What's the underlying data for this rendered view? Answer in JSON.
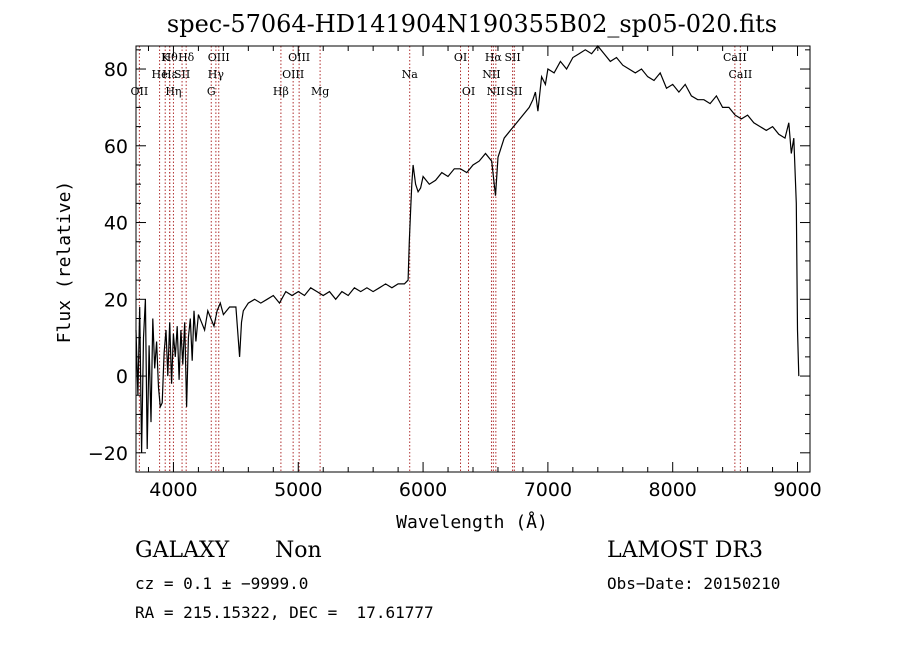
{
  "chart_data": {
    "type": "line",
    "title": "spec-57064-HD141904N190355B02_sp05-020.fits",
    "xlabel": "Wavelength (Å)",
    "ylabel": "Flux (relative)",
    "xlim": [
      3700,
      9100
    ],
    "ylim": [
      -25,
      86
    ],
    "xticks": [
      4000,
      5000,
      6000,
      7000,
      8000,
      9000
    ],
    "yticks": [
      -20,
      0,
      20,
      40,
      60,
      80
    ],
    "xtick_labels": [
      "4000",
      "5000",
      "6000",
      "7000",
      "8000",
      "9000"
    ],
    "ytick_labels": [
      "−20",
      "0",
      "20",
      "40",
      "60",
      "80"
    ],
    "series": [
      {
        "name": "flux",
        "x": [
          3700,
          3715,
          3730,
          3745,
          3760,
          3775,
          3790,
          3805,
          3820,
          3835,
          3850,
          3865,
          3880,
          3895,
          3910,
          3925,
          3940,
          3955,
          3970,
          3985,
          4000,
          4015,
          4030,
          4045,
          4060,
          4075,
          4090,
          4105,
          4120,
          4135,
          4150,
          4165,
          4180,
          4200,
          4225,
          4250,
          4275,
          4300,
          4325,
          4350,
          4375,
          4400,
          4450,
          4500,
          4530,
          4545,
          4560,
          4600,
          4650,
          4700,
          4750,
          4800,
          4850,
          4900,
          4950,
          5000,
          5050,
          5100,
          5150,
          5200,
          5250,
          5300,
          5350,
          5400,
          5450,
          5500,
          5550,
          5600,
          5650,
          5700,
          5750,
          5800,
          5850,
          5880,
          5890,
          5900,
          5910,
          5920,
          5940,
          5960,
          5980,
          6000,
          6050,
          6100,
          6150,
          6200,
          6250,
          6300,
          6350,
          6400,
          6450,
          6500,
          6550,
          6580,
          6600,
          6620,
          6650,
          6700,
          6750,
          6800,
          6850,
          6880,
          6900,
          6920,
          6950,
          6980,
          7000,
          7050,
          7100,
          7150,
          7200,
          7250,
          7300,
          7350,
          7400,
          7450,
          7500,
          7550,
          7600,
          7650,
          7700,
          7750,
          7800,
          7850,
          7900,
          7950,
          8000,
          8050,
          8100,
          8150,
          8200,
          8250,
          8300,
          8350,
          8400,
          8450,
          8500,
          8550,
          8600,
          8650,
          8700,
          8750,
          8800,
          8850,
          8900,
          8930,
          8950,
          8970,
          8990,
          9000,
          9010
        ],
        "y": [
          12,
          -5,
          18,
          -20,
          10,
          20,
          -19,
          8,
          -12,
          15,
          2,
          9,
          -3,
          -8,
          -7,
          6,
          12,
          0,
          14,
          -2,
          11,
          5,
          13,
          -1,
          12,
          3,
          14,
          -8,
          10,
          15,
          4,
          17,
          9,
          16,
          14,
          12,
          17,
          15,
          13,
          17,
          19,
          16,
          18,
          18,
          5,
          14,
          17,
          19,
          20,
          19,
          20,
          21,
          19,
          22,
          21,
          22,
          21,
          23,
          22,
          21,
          22,
          20,
          22,
          21,
          23,
          22,
          23,
          22,
          23,
          24,
          23,
          24,
          24,
          25,
          35,
          43,
          50,
          55,
          50,
          48,
          49,
          52,
          50,
          51,
          53,
          52,
          54,
          54,
          53,
          55,
          56,
          58,
          56,
          47,
          57,
          59,
          62,
          64,
          66,
          68,
          70,
          72,
          74,
          69,
          78,
          76,
          80,
          79,
          82,
          80,
          83,
          84,
          85,
          84,
          86,
          84,
          82,
          83,
          81,
          80,
          79,
          80,
          78,
          77,
          79,
          75,
          76,
          74,
          76,
          73,
          72,
          72,
          71,
          73,
          70,
          70,
          68,
          67,
          68,
          66,
          65,
          64,
          65,
          63,
          62,
          66,
          58,
          62,
          45,
          12,
          0
        ]
      }
    ],
    "lines": [
      {
        "wavelength": 3727,
        "label": "OII",
        "row": 2
      },
      {
        "wavelength": 3889,
        "label": "He",
        "row": 1
      },
      {
        "wavelength": 3934,
        "label": "K",
        "row": 0
      },
      {
        "wavelength": 3970,
        "label": "Hε",
        "row": 1
      },
      {
        "wavelength": 3970,
        "label": "Hθ",
        "row": 0
      },
      {
        "wavelength": 4000,
        "label": "Hη",
        "row": 2
      },
      {
        "wavelength": 4069,
        "label": "SII",
        "row": 1
      },
      {
        "wavelength": 4102,
        "label": "Hδ",
        "row": 0
      },
      {
        "wavelength": 4303,
        "label": "G",
        "row": 2
      },
      {
        "wavelength": 4340,
        "label": "Hγ",
        "row": 1
      },
      {
        "wavelength": 4363,
        "label": "OIII",
        "row": 0
      },
      {
        "wavelength": 4861,
        "label": "Hβ",
        "row": 2
      },
      {
        "wavelength": 4959,
        "label": "OIII",
        "row": 1
      },
      {
        "wavelength": 5007,
        "label": "OIII",
        "row": 0
      },
      {
        "wavelength": 5175,
        "label": "Mg",
        "row": 2
      },
      {
        "wavelength": 5893,
        "label": "Na",
        "row": 1
      },
      {
        "wavelength": 6300,
        "label": "OI",
        "row": 0
      },
      {
        "wavelength": 6364,
        "label": "OI",
        "row": 2
      },
      {
        "wavelength": 6548,
        "label": "NII",
        "row": 1
      },
      {
        "wavelength": 6563,
        "label": "Hα",
        "row": 0
      },
      {
        "wavelength": 6583,
        "label": "NII",
        "row": 2
      },
      {
        "wavelength": 6717,
        "label": "SII",
        "row": 0
      },
      {
        "wavelength": 6731,
        "label": "SII",
        "row": 2
      },
      {
        "wavelength": 8498,
        "label": "CaII",
        "row": 0
      },
      {
        "wavelength": 8542,
        "label": "CaII",
        "row": 1
      }
    ]
  },
  "info": {
    "class": "GALAXY",
    "subclass": "Non",
    "survey": "LAMOST DR3",
    "cz": "cz = 0.1 ± −9999.0",
    "obs_date": "Obs−Date: 20150210",
    "coords": "RA = 215.15322, DEC =  17.61777"
  },
  "colors": {
    "line_marker": "#b03030",
    "axis": "#000000"
  }
}
